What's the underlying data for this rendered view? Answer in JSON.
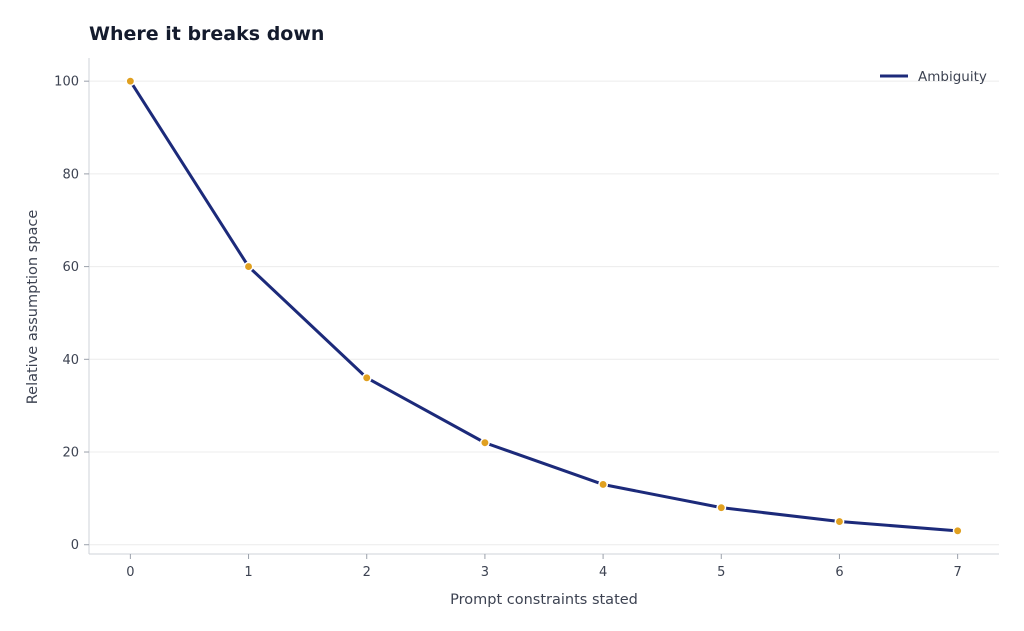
{
  "chart_data": {
    "type": "line",
    "title": "Where it breaks down",
    "xlabel": "Prompt constraints stated",
    "ylabel": "Relative assumption space",
    "x": [
      0,
      1,
      2,
      3,
      4,
      5,
      6,
      7
    ],
    "xticks": [
      "0",
      "1",
      "2",
      "3",
      "4",
      "5",
      "6",
      "7"
    ],
    "yticks": [
      "0",
      "20",
      "40",
      "60",
      "80",
      "100"
    ],
    "xlim": [
      -0.35,
      7.35
    ],
    "ylim": [
      -2,
      105
    ],
    "grid": true,
    "legend_position": "top-right",
    "series": [
      {
        "name": "Ambiguity",
        "values": [
          100,
          60,
          36,
          22,
          13,
          8,
          5,
          3
        ],
        "line_color": "#1c2a7a",
        "marker_color": "#e0a020"
      }
    ]
  }
}
